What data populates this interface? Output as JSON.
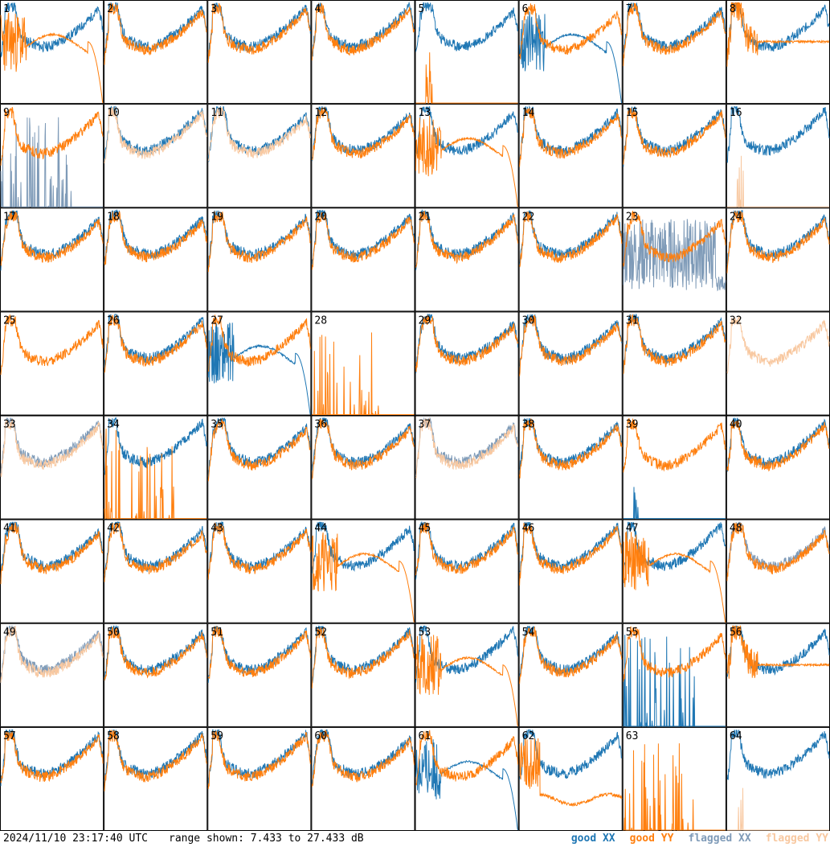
{
  "chart_data": {
    "type": "line",
    "layout": "small-multiples",
    "rows": 8,
    "cols": 8,
    "panel_labels": [
      "1",
      "2",
      "3",
      "4",
      "5",
      "6",
      "7",
      "8",
      "9",
      "10",
      "11",
      "12",
      "13",
      "14",
      "15",
      "16",
      "17",
      "18",
      "19",
      "20",
      "21",
      "22",
      "23",
      "24",
      "25",
      "26",
      "27",
      "28",
      "29",
      "30",
      "31",
      "32",
      "33",
      "34",
      "35",
      "36",
      "37",
      "38",
      "39",
      "40",
      "41",
      "42",
      "43",
      "44",
      "45",
      "46",
      "47",
      "48",
      "49",
      "50",
      "51",
      "52",
      "53",
      "54",
      "55",
      "56",
      "57",
      "58",
      "59",
      "60",
      "61",
      "62",
      "63",
      "64"
    ],
    "ylim": [
      7.433,
      27.433
    ],
    "series_names": [
      "good XX",
      "good YY",
      "flagged XX",
      "flagged YY"
    ],
    "colors": {
      "good_xx": "#1f77b4",
      "good_yy": "#ff7f0e",
      "flagged_xx": "#7f9bb8",
      "flagged_yy": "#f8c8a0"
    },
    "profiles": {
      "1": {
        "xx": "normal",
        "yy": "rolloff"
      },
      "5": {
        "xx": "normal",
        "yy": "spike"
      },
      "6": {
        "xx": "rolloff",
        "yy": "normal"
      },
      "8": {
        "xx": "normal",
        "yy": "smooth"
      },
      "9": {
        "xx": "fspikes",
        "yy": "normal"
      },
      "10": {
        "xx": "normal",
        "yy": "flagged"
      },
      "11": {
        "xx": "normal",
        "yy": "flagged"
      },
      "13": {
        "xx": "normal",
        "yy": "rolloff"
      },
      "16": {
        "xx": "normal",
        "yy": "fspike"
      },
      "23": {
        "xx": "noisy",
        "yy": "normal"
      },
      "25": {
        "xx": "none",
        "yy": "normal"
      },
      "27": {
        "xx": "rolloff",
        "yy": "normal"
      },
      "28": {
        "xx": "none",
        "yy": "spikes"
      },
      "32": {
        "xx": "none",
        "yy": "flagged"
      },
      "33": {
        "xx": "flagged",
        "yy": "flagged"
      },
      "34": {
        "xx": "normal",
        "yy": "spikes"
      },
      "37": {
        "xx": "flagged",
        "yy": "flagged"
      },
      "39": {
        "xx": "spike",
        "yy": "normal"
      },
      "44": {
        "xx": "normal",
        "yy": "rolloff"
      },
      "47": {
        "xx": "normal",
        "yy": "rolloff"
      },
      "48": {
        "xx": "flagged",
        "yy": "normal"
      },
      "49": {
        "xx": "flagged",
        "yy": "flagged"
      },
      "53": {
        "xx": "normal",
        "yy": "rolloff"
      },
      "55": {
        "xx": "spikes",
        "yy": "normal"
      },
      "56": {
        "xx": "normal",
        "yy": "smooth"
      },
      "61": {
        "xx": "rolloff",
        "yy": "normal"
      },
      "62": {
        "xx": "normal",
        "yy": "low"
      },
      "63": {
        "xx": "none",
        "yy": "spikes"
      },
      "64": {
        "xx": "normal",
        "yy": "fspike"
      }
    }
  },
  "footer": {
    "timestamp": "2024/11/10 23:17:40 UTC",
    "range_text": "range shown: 7.433 to 27.433 dB"
  },
  "legend": {
    "good_xx": "good XX",
    "good_yy": "good YY",
    "flagged_xx": "flagged XX",
    "flagged_yy": "flagged YY"
  }
}
